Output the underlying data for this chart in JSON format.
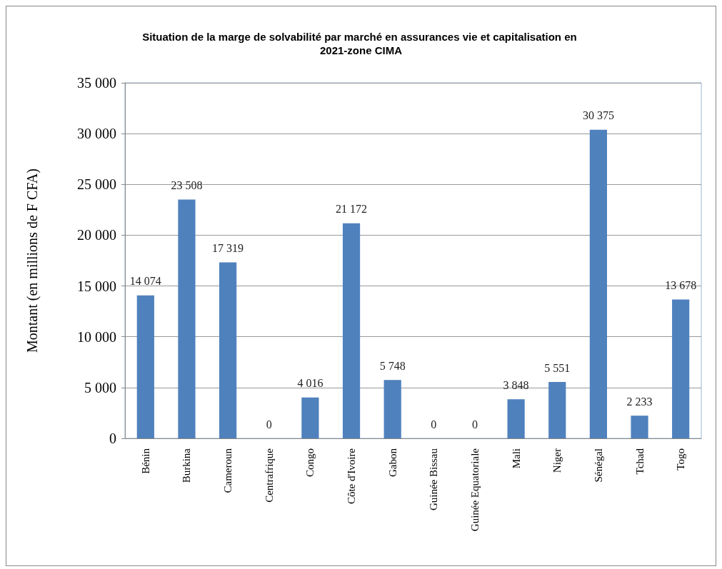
{
  "chart_data": {
    "type": "bar",
    "title": "Situation de la marge de solvabilité par marché en assurances vie et capitalisation en 2021-zone CIMA",
    "ylabel": "Montant (en millions de F CFA)",
    "categories": [
      "Bénin",
      "Burkina",
      "Cameroun",
      "Centrafrique",
      "Congo",
      "Côte d'Ivoire",
      "Gabon",
      "Guinée Bissau",
      "Guinée Equatoriale",
      "Mali",
      "Niger",
      "Sénégal",
      "Tchad",
      "Togo"
    ],
    "values": [
      14074,
      23508,
      17319,
      0,
      4016,
      21172,
      5748,
      0,
      0,
      3848,
      5551,
      30375,
      2233,
      13678
    ],
    "value_labels": [
      "14 074",
      "23 508",
      "17 319",
      "0",
      "4 016",
      "21 172",
      "5 748",
      "0",
      "0",
      "3 848",
      "5 551",
      "30 375",
      "2 233",
      "13 678"
    ],
    "color": "#4f81bd",
    "ylim": [
      0,
      35000
    ],
    "yticks": [
      {
        "value": 0,
        "label": "0"
      },
      {
        "value": 5000,
        "label": "5 000"
      },
      {
        "value": 10000,
        "label": "10 000"
      },
      {
        "value": 15000,
        "label": "15 000"
      },
      {
        "value": 20000,
        "label": "20 000"
      },
      {
        "value": 25000,
        "label": "25 000"
      },
      {
        "value": 30000,
        "label": "30 000"
      },
      {
        "value": 35000,
        "label": "35 000"
      }
    ],
    "grid": "y"
  }
}
